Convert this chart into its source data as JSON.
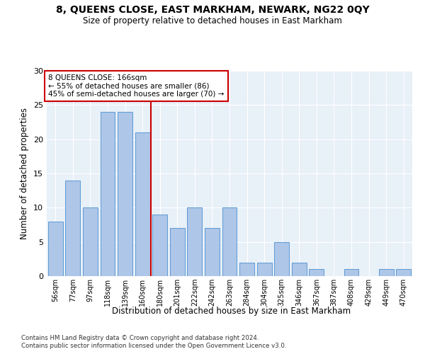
{
  "title": "8, QUEENS CLOSE, EAST MARKHAM, NEWARK, NG22 0QY",
  "subtitle": "Size of property relative to detached houses in East Markham",
  "xlabel": "Distribution of detached houses by size in East Markham",
  "ylabel": "Number of detached properties",
  "footer1": "Contains HM Land Registry data © Crown copyright and database right 2024.",
  "footer2": "Contains public sector information licensed under the Open Government Licence v3.0.",
  "annotation_title": "8 QUEENS CLOSE: 166sqm",
  "annotation_line2": "← 55% of detached houses are smaller (86)",
  "annotation_line3": "45% of semi-detached houses are larger (70) →",
  "bar_labels": [
    "56sqm",
    "77sqm",
    "97sqm",
    "118sqm",
    "139sqm",
    "160sqm",
    "180sqm",
    "201sqm",
    "222sqm",
    "242sqm",
    "263sqm",
    "284sqm",
    "304sqm",
    "325sqm",
    "346sqm",
    "367sqm",
    "387sqm",
    "408sqm",
    "429sqm",
    "449sqm",
    "470sqm"
  ],
  "bar_values": [
    8,
    14,
    10,
    24,
    24,
    21,
    9,
    7,
    10,
    7,
    10,
    2,
    2,
    5,
    2,
    1,
    0,
    1,
    0,
    1,
    1
  ],
  "bar_color": "#aec6e8",
  "bar_edge_color": "#5b9bd5",
  "vline_color": "#cc0000",
  "vline_x": 5.5,
  "annotation_box_color": "#cc0000",
  "background_color": "#e8f0f8",
  "ylim": [
    0,
    30
  ],
  "yticks": [
    0,
    5,
    10,
    15,
    20,
    25,
    30
  ]
}
